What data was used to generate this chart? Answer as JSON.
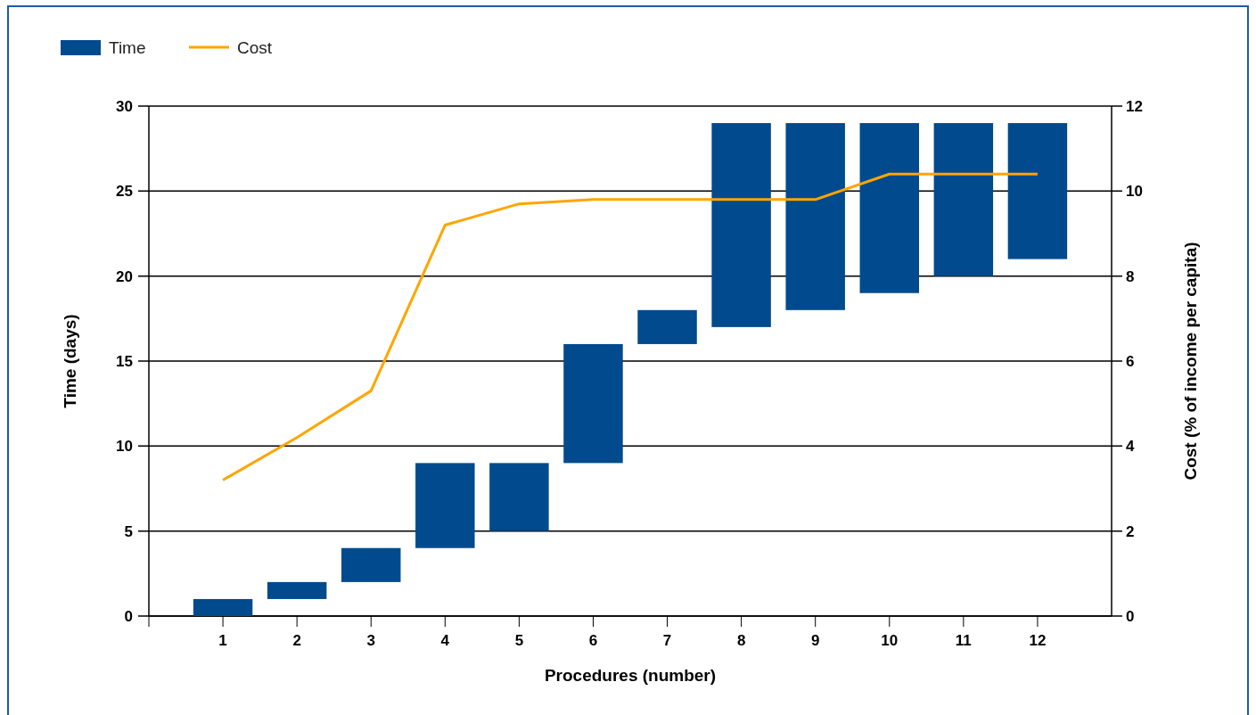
{
  "chart_data": {
    "type": "bar",
    "xlabel": "Procedures (number)",
    "ylabel": "Time (days)",
    "y2label": "Cost (% of income per capita)",
    "categories": [
      "1",
      "2",
      "3",
      "4",
      "5",
      "6",
      "7",
      "8",
      "9",
      "10",
      "11",
      "12"
    ],
    "series": [
      {
        "name": "Time",
        "color": "#004a8d",
        "base": [
          0,
          1,
          2,
          4,
          5,
          9,
          16,
          17,
          18,
          19,
          20,
          21
        ],
        "values": [
          1,
          1,
          2,
          5,
          4,
          7,
          2,
          12,
          11,
          10,
          9,
          8
        ]
      },
      {
        "name": "Cost",
        "type": "line",
        "axis": "y2",
        "color": "#ffa500",
        "values": [
          3.2,
          4.2,
          5.3,
          9.2,
          9.7,
          9.8,
          9.8,
          9.8,
          9.8,
          10.4,
          10.4,
          10.4
        ]
      }
    ],
    "ylim": [
      0,
      30
    ],
    "yticks": [
      0,
      5,
      10,
      15,
      20,
      25,
      30
    ],
    "y2lim": [
      0,
      12
    ],
    "y2ticks": [
      0,
      2,
      4,
      6,
      8,
      10,
      12
    ],
    "grid": "y",
    "legend": "top left",
    "marker": "none",
    "line_style": "solid"
  }
}
